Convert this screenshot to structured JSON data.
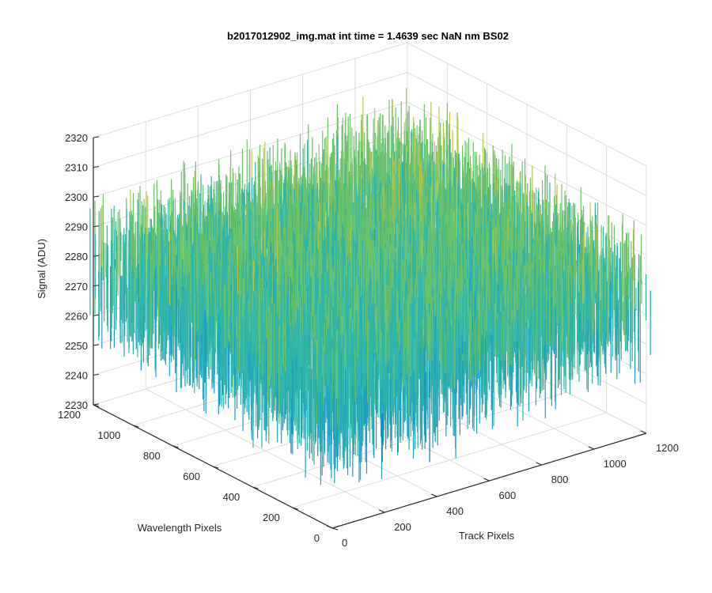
{
  "chart_data": {
    "type": "surface",
    "title": "b2017012902_img.mat int time = 1.4639 sec  NaN nm BS02",
    "xlabel": "Track Pixels",
    "ylabel": "Wavelength Pixels",
    "zlabel": "Signal (ADU)",
    "xlim": [
      0,
      1200
    ],
    "ylim": [
      0,
      1200
    ],
    "zlim": [
      2230,
      2320
    ],
    "xticks": [
      0,
      200,
      400,
      600,
      800,
      1000,
      1200
    ],
    "yticks": [
      0,
      200,
      400,
      600,
      800,
      1000,
      1200
    ],
    "zticks": [
      2230,
      2240,
      2250,
      2260,
      2270,
      2280,
      2290,
      2300,
      2310,
      2320
    ],
    "surface_mean": 2275,
    "surface_noise_range": [
      2240,
      2315
    ],
    "colormap": [
      "#0072bd",
      "#1a9ec8",
      "#2fb5a8",
      "#6cc36a",
      "#b8c64a",
      "#e7b92f"
    ],
    "grid": true
  }
}
